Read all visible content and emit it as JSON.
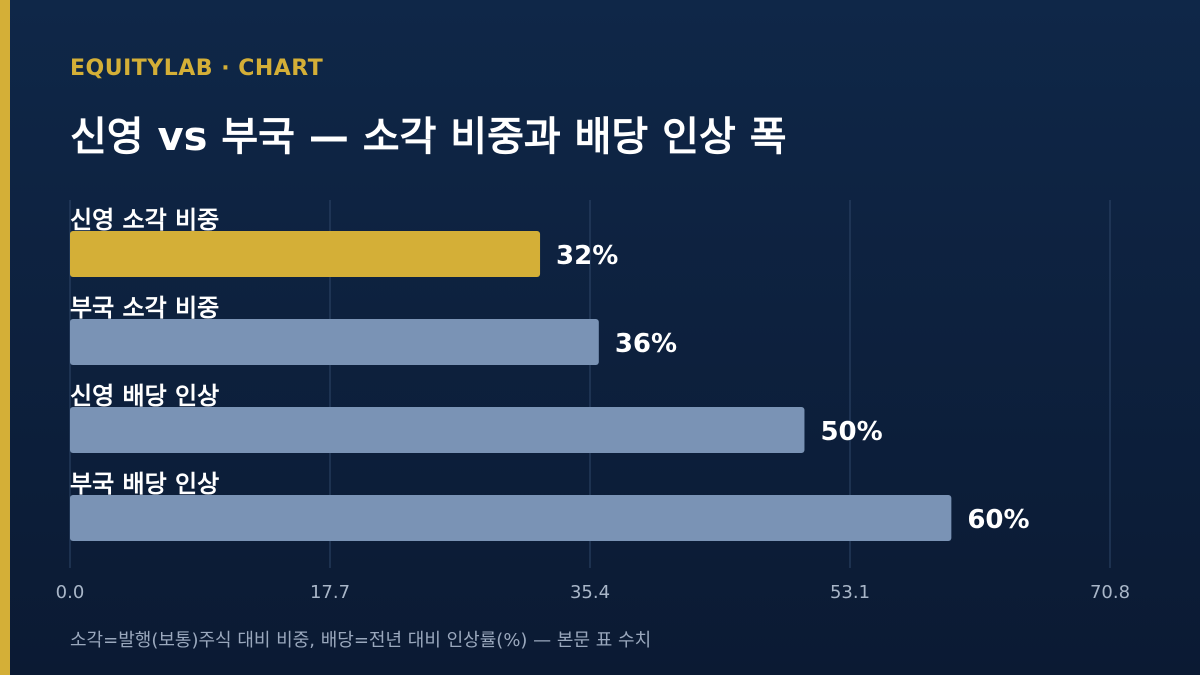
{
  "header": {
    "brand": "EQUITYLAB · CHART",
    "title": "신영 vs 부국 — 소각 비중과 배당 인상 폭"
  },
  "footnote": "소각=발행(보통)주식 대비 비중, 배당=전년 대비 인상률(%) — 본문 표 수치",
  "colors": {
    "highlight": "#d4af37",
    "bar": "#7a93b5",
    "grid": "#2e4668",
    "tick": "#a9b6c8"
  },
  "chart_data": {
    "type": "bar",
    "orientation": "horizontal",
    "title": "신영 vs 부국 — 소각 비중과 배당 인상 폭",
    "categories": [
      "신영 소각 비중",
      "부국 소각 비중",
      "신영 배당 인상",
      "부국 배당 인상"
    ],
    "values": [
      32,
      36,
      50,
      60
    ],
    "value_labels": [
      "32%",
      "36%",
      "50%",
      "60%"
    ],
    "highlight_index": 0,
    "xlim": [
      0,
      70.8
    ],
    "xticks": [
      "0.0",
      "17.7",
      "35.4",
      "53.1",
      "70.8"
    ],
    "grid": true
  }
}
